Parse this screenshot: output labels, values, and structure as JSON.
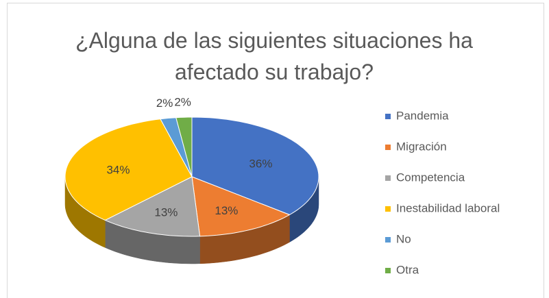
{
  "chart_data": {
    "type": "pie3d",
    "title": "¿Alguna de las siguientes situaciones ha afectado su trabajo?",
    "categories": [
      "Pandemia",
      "Migración",
      "Competencia",
      "Inestabilidad laboral",
      "No",
      "Otra"
    ],
    "values": [
      36,
      13,
      13,
      34,
      2,
      2
    ],
    "value_labels": [
      "36%",
      "13%",
      "13%",
      "34%",
      "2%",
      "2%"
    ],
    "colors": [
      "#4472c4",
      "#ed7d31",
      "#a5a5a5",
      "#ffc000",
      "#5b9bd5",
      "#70ad47"
    ],
    "legend": "right"
  }
}
